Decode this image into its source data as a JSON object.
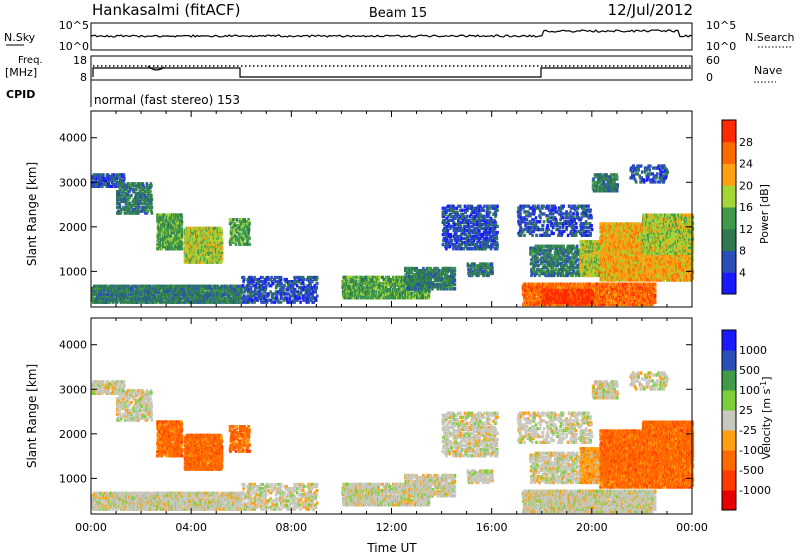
{
  "header": {
    "title": "Hankasalmi (fitACF)",
    "beam": "Beam 15",
    "date": "12/Jul/2012"
  },
  "top_panels": {
    "nsky_label": "N.Sky",
    "nsky_ticks": [
      "10^5",
      "10^0"
    ],
    "nsearch_label": "N.Search",
    "nsearch_ticks": [
      "10^5",
      "10^0"
    ],
    "freq_label_1": "Freq.",
    "freq_label_2": "[MHz]",
    "freq_ticks": [
      "18",
      "8"
    ],
    "nave_label": "Nave",
    "nave_ticks": [
      "60",
      "0"
    ],
    "cpid_label": "CPID",
    "cpid_text": "normal (fast stereo) 153"
  },
  "colors": {
    "power_scale": [
      "#1a1aff",
      "#2a4fb8",
      "#2f7a52",
      "#3f9a4a",
      "#a6d636",
      "#ffa012",
      "#ff6a00",
      "#ff2a00",
      "#e60000"
    ],
    "velocity_scale": [
      "#e60000",
      "#ff3a00",
      "#ff6a00",
      "#ffa012",
      "#c8c8be",
      "#7ccf38",
      "#3f9a4a",
      "#2a4fb8",
      "#1a1aff"
    ]
  },
  "chart_data": [
    {
      "type": "heatmap",
      "name": "power",
      "ylabel": "Slant Range [km]",
      "yticks": [
        "1000",
        "2000",
        "3000",
        "4000"
      ],
      "ylim": [
        200,
        4600
      ],
      "xticks": [
        "00:00",
        "04:00",
        "08:00",
        "12:00",
        "16:00",
        "20:00",
        "00:00"
      ],
      "xlim": [
        0,
        24
      ],
      "colorbar_label": "Power [dB]",
      "colorbar_ticks": [
        "4",
        "8",
        "12",
        "16",
        "20",
        "24",
        "28"
      ],
      "colorbar_range": [
        0,
        32
      ]
    },
    {
      "type": "heatmap",
      "name": "velocity",
      "ylabel": "Slant Range [km]",
      "yticks": [
        "1000",
        "2000",
        "3000",
        "4000"
      ],
      "ylim": [
        200,
        4600
      ],
      "xticks": [
        "00:00",
        "04:00",
        "08:00",
        "12:00",
        "16:00",
        "20:00",
        "00:00"
      ],
      "xlim": [
        0,
        24
      ],
      "xlabel": "Time UT",
      "colorbar_label": "Velocity [m s",
      "colorbar_label_sup": "-1",
      "colorbar_label_end": "]",
      "colorbar_ticks": [
        "1000",
        "500",
        "100",
        "25",
        "-25",
        "-100",
        "-500",
        "-1000"
      ]
    }
  ]
}
